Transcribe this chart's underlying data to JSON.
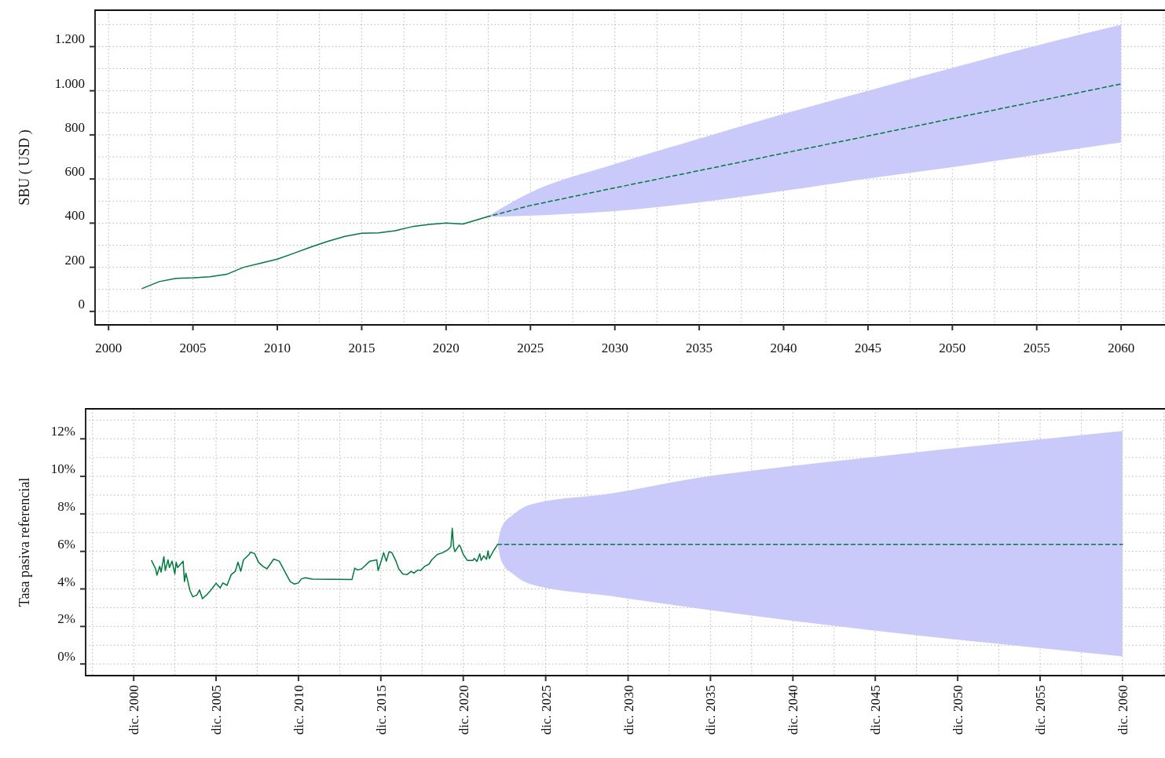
{
  "chart_data": [
    {
      "type": "line",
      "ylabel": "SBU ( USD )",
      "xlim": [
        1999.2,
        2062.6
      ],
      "ylim": [
        -61,
        1365
      ],
      "xticks": [
        2000,
        2005,
        2010,
        2015,
        2020,
        2025,
        2030,
        2035,
        2040,
        2045,
        2050,
        2055,
        2060
      ],
      "yticks": [
        0,
        200,
        400,
        600,
        800,
        {
          "value": 1000,
          "label": "1.000"
        },
        {
          "value": 1200,
          "label": "1.200"
        }
      ],
      "grid": true,
      "series": [
        {
          "color": "#007a3d",
          "x": [
            2002,
            2003,
            2004,
            2005,
            2006,
            2007,
            2008,
            2009,
            2010,
            2011,
            2012,
            2013,
            2014,
            2015,
            2016,
            2017,
            2018,
            2019,
            2020,
            2021,
            2022.4
          ],
          "values": [
            104,
            135,
            150,
            152,
            157,
            168,
            200,
            218,
            237,
            264,
            292,
            318,
            340,
            354,
            356,
            366,
            384,
            394,
            400,
            396,
            428
          ]
        },
        {
          "color": "#007a3d",
          "line_style": "dashed",
          "x": [
            2022.4,
            2025,
            2030,
            2035,
            2040,
            2045,
            2050,
            2055,
            2060
          ],
          "values": [
            428,
            480,
            560,
            638,
            717,
            795,
            874,
            952,
            1031
          ],
          "lower": [
            428,
            434,
            455,
            494,
            546,
            602,
            654,
            710,
            766
          ],
          "upper": [
            428,
            539,
            668,
            783,
            895,
            1000,
            1104,
            1205,
            1299
          ]
        }
      ]
    },
    {
      "type": "line",
      "ylabel": "Tasa pasiva referencial",
      "xlim": [
        "1998-01",
        "2063-07"
      ],
      "ylim": [
        -0.62,
        13.6
      ],
      "xticks": [
        {
          "value": "2000-12",
          "label": "dic. 2000"
        },
        {
          "value": "2005-12",
          "label": "dic. 2005"
        },
        {
          "value": "2010-12",
          "label": "dic. 2010"
        },
        {
          "value": "2015-12",
          "label": "dic. 2015"
        },
        {
          "value": "2020-12",
          "label": "dic. 2020"
        },
        {
          "value": "2025-12",
          "label": "dic. 2025"
        },
        {
          "value": "2030-12",
          "label": "dic. 2030"
        },
        {
          "value": "2035-12",
          "label": "dic. 2035"
        },
        {
          "value": "2040-12",
          "label": "dic. 2040"
        },
        {
          "value": "2045-12",
          "label": "dic. 2045"
        },
        {
          "value": "2050-12",
          "label": "dic. 2050"
        },
        {
          "value": "2055-12",
          "label": "dic. 2055"
        },
        {
          "value": "2060-12",
          "label": "dic. 2060"
        }
      ],
      "yticks": [
        {
          "value": 0,
          "label": "0%"
        },
        {
          "value": 2,
          "label": "2%"
        },
        {
          "value": 4,
          "label": "4%"
        },
        {
          "value": 6,
          "label": "6%"
        },
        {
          "value": 8,
          "label": "8%"
        },
        {
          "value": 10,
          "label": "10%"
        },
        {
          "value": 12,
          "label": "12%"
        }
      ],
      "grid": true,
      "series": [
        {
          "color": "#007a3d",
          "x": [
            "2002-01",
            "2002-04",
            "2002-05",
            "2002-07",
            "2002-08",
            "2002-10",
            "2002-11",
            "2003-01",
            "2003-02",
            "2003-04",
            "2003-06",
            "2003-07",
            "2003-08",
            "2003-12",
            "2004-01",
            "2004-02",
            "2004-05",
            "2004-07",
            "2004-10",
            "2004-12",
            "2005-02",
            "2005-05",
            "2005-08",
            "2005-12",
            "2006-03",
            "2006-05",
            "2006-08",
            "2006-11",
            "2007-02",
            "2007-04",
            "2007-06",
            "2007-08",
            "2007-12",
            "2008-01",
            "2008-04",
            "2008-07",
            "2008-10",
            "2009-01",
            "2009-06",
            "2009-10",
            "2009-12",
            "2010-03",
            "2010-06",
            "2010-09",
            "2010-12",
            "2011-02",
            "2011-05",
            "2011-10",
            "2014-03",
            "2014-05",
            "2014-07",
            "2014-10",
            "2015-04",
            "2015-09",
            "2015-10",
            "2015-12",
            "2016-02",
            "2016-04",
            "2016-06",
            "2016-08",
            "2016-11",
            "2017-01",
            "2017-04",
            "2017-07",
            "2017-10",
            "2017-12",
            "2018-03",
            "2018-05",
            "2018-08",
            "2018-11",
            "2019-01",
            "2019-05",
            "2019-09",
            "2020-01",
            "2020-03",
            "2020-04",
            "2020-05",
            "2020-06",
            "2020-09",
            "2020-10",
            "2020-12",
            "2021-03",
            "2021-07",
            "2021-08",
            "2021-10",
            "2021-12",
            "2022-01",
            "2022-03",
            "2022-05",
            "2022-06",
            "2022-07",
            "2022-10",
            "2023-01"
          ],
          "values": [
            5.51,
            5.07,
            4.73,
            5.21,
            4.9,
            5.72,
            4.98,
            5.55,
            5.14,
            5.48,
            4.8,
            5.42,
            5.14,
            5.48,
            4.39,
            4.84,
            3.92,
            3.58,
            3.67,
            3.94,
            3.48,
            3.67,
            3.92,
            4.3,
            4.05,
            4.32,
            4.19,
            4.76,
            4.94,
            5.42,
            4.94,
            5.55,
            5.83,
            5.96,
            5.89,
            5.42,
            5.21,
            5.07,
            5.59,
            5.48,
            5.21,
            4.8,
            4.39,
            4.26,
            4.32,
            4.53,
            4.6,
            4.52,
            4.5,
            5.11,
            5.01,
            5.07,
            5.48,
            5.55,
            4.98,
            5.42,
            5.93,
            5.48,
            5.99,
            5.93,
            5.48,
            5.07,
            4.8,
            4.76,
            4.94,
            4.84,
            5.01,
            4.98,
            5.21,
            5.32,
            5.55,
            5.83,
            5.93,
            6.1,
            6.26,
            7.23,
            6.24,
            5.99,
            6.34,
            6.24,
            5.83,
            5.52,
            5.52,
            5.62,
            5.47,
            5.87,
            5.52,
            5.76,
            5.58,
            6.03,
            5.62,
            6.03,
            6.37
          ]
        },
        {
          "color": "#007a3d",
          "line_style": "dashed",
          "x": [
            "2023-01",
            "2023-04",
            "2024-01",
            "2025-01",
            "2030-01",
            "2035-01",
            "2040-01",
            "2045-01",
            "2050-01",
            "2055-01",
            "2060-12"
          ],
          "values": [
            6.37,
            6.37,
            6.37,
            6.37,
            6.37,
            6.37,
            6.37,
            6.37,
            6.37,
            6.37,
            6.37
          ],
          "lower": [
            6.37,
            5.45,
            4.75,
            4.25,
            3.6,
            2.98,
            2.4,
            1.87,
            1.38,
            0.93,
            0.4
          ],
          "upper": [
            6.37,
            7.3,
            8.0,
            8.5,
            9.1,
            9.9,
            10.46,
            10.95,
            11.44,
            11.89,
            12.42
          ]
        }
      ]
    }
  ]
}
